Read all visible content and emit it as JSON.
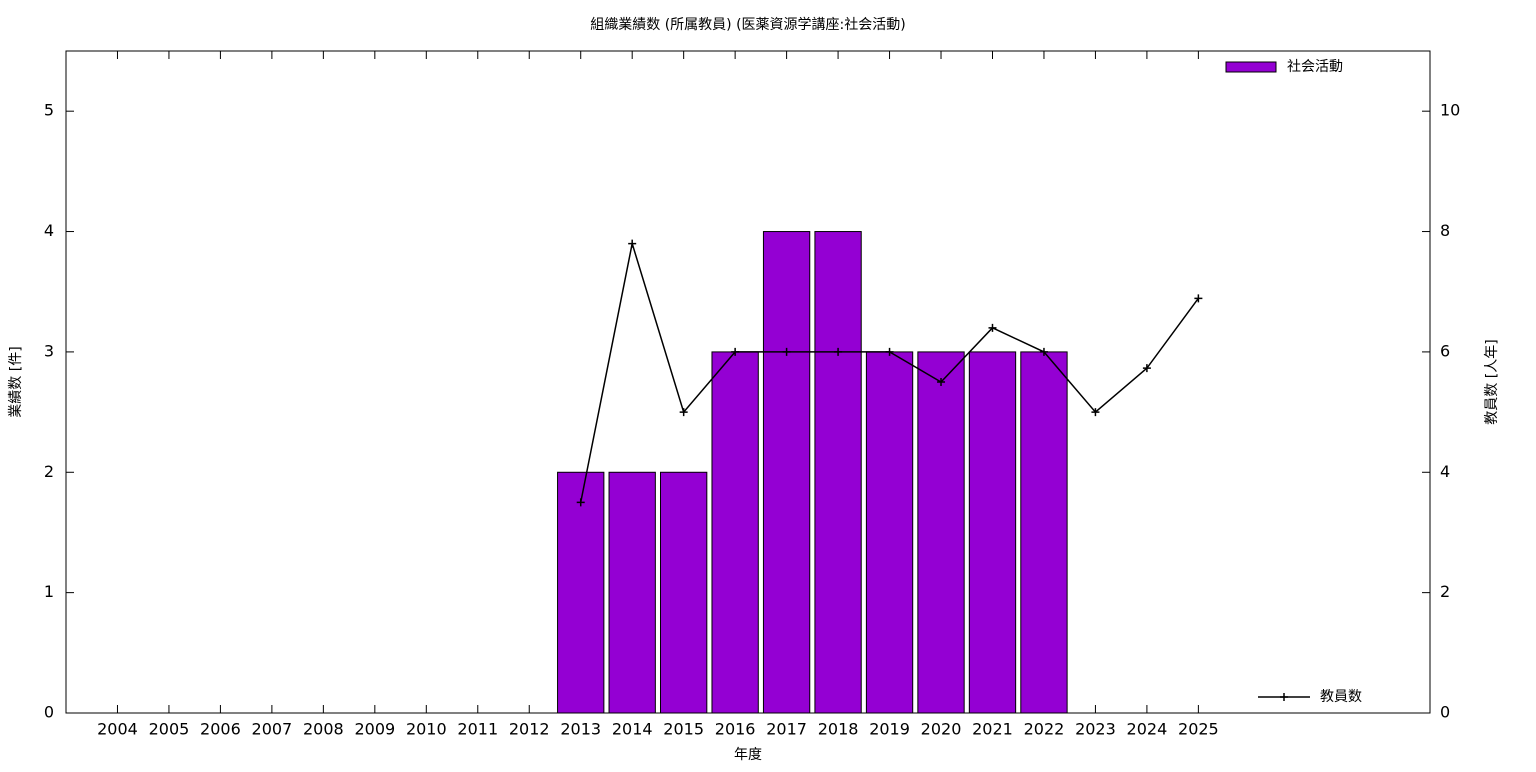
{
  "chart_data": {
    "type": "bar",
    "title": "組織業績数 (所属教員) (医薬資源学講座:社会活動)",
    "x_label": "年度",
    "y_label": "業績数 [件]",
    "y2_label": "教員数 [人年]",
    "x": [
      2004,
      2005,
      2006,
      2007,
      2008,
      2009,
      2010,
      2011,
      2012,
      2013,
      2014,
      2015,
      2016,
      2017,
      2018,
      2019,
      2020,
      2021,
      2022,
      2023,
      2024,
      2025
    ],
    "xlim": [
      2003,
      2029.5
    ],
    "xticks": [
      2004,
      2005,
      2006,
      2007,
      2008,
      2009,
      2010,
      2011,
      2012,
      2013,
      2014,
      2015,
      2016,
      2017,
      2018,
      2019,
      2020,
      2021,
      2022,
      2023,
      2024,
      2025
    ],
    "ylim": [
      0,
      5.5
    ],
    "yticks": [
      0,
      1,
      2,
      3,
      4,
      5
    ],
    "y2lim": [
      0,
      11
    ],
    "y2ticks": [
      0,
      2,
      4,
      6,
      8,
      10
    ],
    "series": [
      {
        "name": "社会活動",
        "color": "#9400d3",
        "values": [
          0,
          0,
          0,
          0,
          0,
          0,
          0,
          0,
          0,
          2,
          2,
          2,
          3,
          4,
          4,
          3,
          3,
          3,
          3,
          0,
          0,
          0
        ]
      },
      {
        "name": "教員数",
        "color": "#000000",
        "axis": "y2",
        "values": [
          null,
          null,
          null,
          null,
          null,
          null,
          null,
          null,
          null,
          3.5,
          7.8,
          5,
          6,
          6,
          6,
          6,
          5.5,
          6.4,
          6,
          5,
          5.73,
          6.89
        ]
      }
    ],
    "legend": {
      "bars": "upper right",
      "line": "lower right"
    }
  }
}
